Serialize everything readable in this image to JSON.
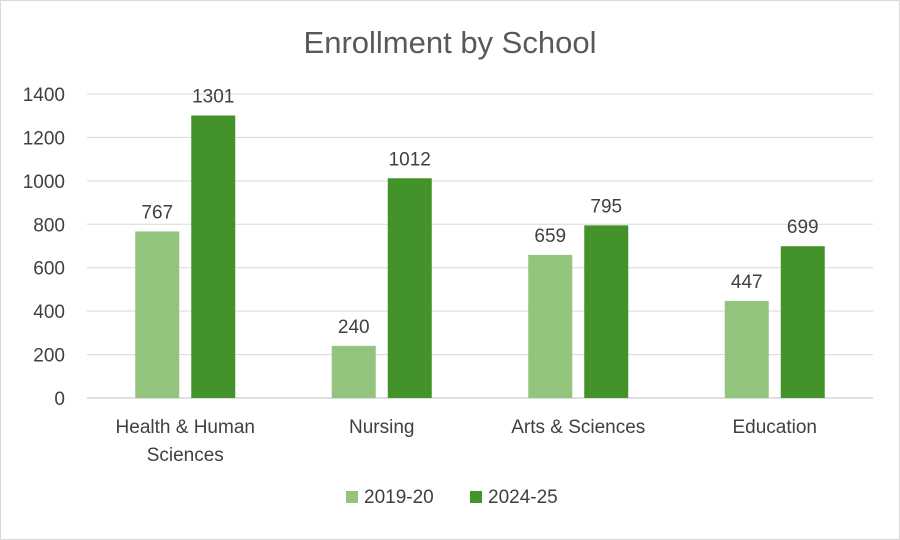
{
  "chart_data": {
    "type": "bar",
    "title": "Enrollment by School",
    "xlabel": "",
    "ylabel": "",
    "categories": [
      [
        "Health & Human",
        "Sciences"
      ],
      [
        "Nursing"
      ],
      [
        "Arts & Sciences"
      ],
      [
        "Education"
      ]
    ],
    "series": [
      {
        "name": "2019-20",
        "values": [
          767,
          240,
          659,
          447
        ],
        "color": "#93c47d"
      },
      {
        "name": "2024-25",
        "values": [
          1301,
          1012,
          795,
          699
        ],
        "color": "#43922a"
      }
    ],
    "ylim": [
      0,
      1400
    ],
    "yticks": [
      0,
      200,
      400,
      600,
      800,
      1000,
      1200,
      1400
    ],
    "grid": true,
    "legend_position": "bottom",
    "data_labels": true
  }
}
